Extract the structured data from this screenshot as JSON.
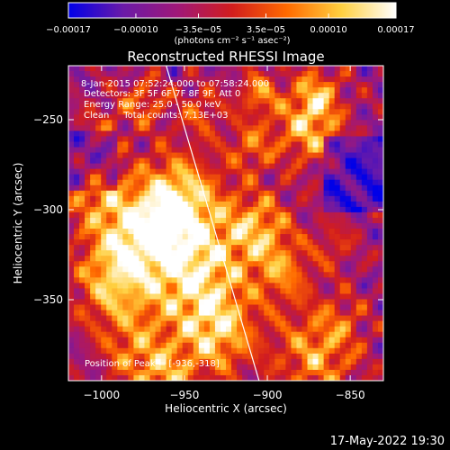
{
  "chart_data": {
    "type": "heatmap",
    "title": "Reconstructed RHESSI Image",
    "xlabel": "Heliocentric X (arcsec)",
    "ylabel": "Heliocentric Y (arcsec)",
    "xlim": [
      -1020,
      -830
    ],
    "ylim": [
      -395,
      -220
    ],
    "x_ticks": [
      -1000,
      -950,
      -900,
      -850
    ],
    "x_tick_labels": [
      "−1000",
      "−950",
      "−900",
      "−850"
    ],
    "y_ticks": [
      -250,
      -300,
      -350
    ],
    "y_tick_labels": [
      "−250",
      "−300",
      "−350"
    ],
    "colorbar": {
      "range": [
        -0.00017,
        0.00017
      ],
      "ticks": [
        -0.00017,
        -0.0001,
        -3.5e-05,
        3.5e-05,
        0.0001,
        0.00017
      ],
      "tick_labels": [
        "−0.00017",
        "−0.00010",
        "−3.5e−05",
        "3.5e−05",
        "0.00010",
        "0.00017"
      ],
      "unit_label": "(photons cm⁻² s⁻¹ asec⁻²)",
      "stops": [
        "#0000e8",
        "#6a1aa8",
        "#a01878",
        "#d21d1d",
        "#ff6a00",
        "#ffd040",
        "#ffffff"
      ]
    },
    "info_lines": [
      "8-Jan-2015 07:52:24.000 to 07:58:24.000",
      "Detectors: 3F 5F 6F 7F 8F 9F, Att 0",
      "Energy Range: 25.0 - 50.0 keV",
      "Clean     Total counts: 7.13E+03"
    ],
    "peak_label": "Position of Peak = [-936,-318]",
    "peak": [
      -936,
      -318
    ],
    "limb_line": [
      [
        -961,
        -220
      ],
      [
        -905,
        -395
      ]
    ]
  },
  "timestamp": "17-May-2022 19:30"
}
